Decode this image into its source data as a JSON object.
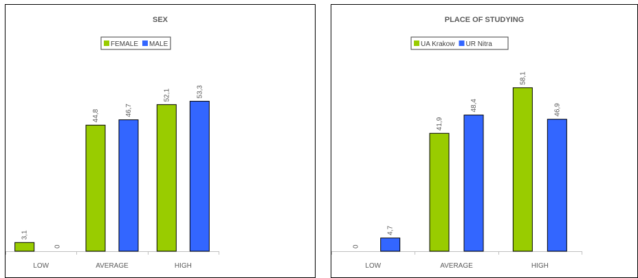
{
  "chart_data": [
    {
      "type": "bar",
      "title": "SEX",
      "categories": [
        "LOW",
        "AVERAGE",
        "HIGH"
      ],
      "series": [
        {
          "name": "FEMALE",
          "color": "#99cc00",
          "values": [
            3.1,
            44.8,
            52.1
          ],
          "labels": [
            "3,1",
            "44,8",
            "52,1"
          ]
        },
        {
          "name": "MALE",
          "color": "#3366ff",
          "values": [
            0,
            46.7,
            53.3
          ],
          "labels": [
            "0",
            "46,7",
            "53,3"
          ]
        }
      ],
      "ylim": [
        0,
        60
      ],
      "legend_position": "top-center",
      "grid": false,
      "xlabel": "",
      "ylabel": ""
    },
    {
      "type": "bar",
      "title": "PLACE OF STUDYING",
      "categories": [
        "LOW",
        "AVERAGE",
        "HIGH"
      ],
      "series": [
        {
          "name": "UA Krakow",
          "color": "#99cc00",
          "values": [
            0,
            41.9,
            58.1
          ],
          "labels": [
            "0",
            "41,9",
            "58,1"
          ]
        },
        {
          "name": "UR Nitra",
          "color": "#3366ff",
          "values": [
            4.7,
            48.4,
            46.9
          ],
          "labels": [
            "4,7",
            "48,4",
            "46,9"
          ]
        }
      ],
      "ylim": [
        0,
        60
      ],
      "legend_position": "top-center",
      "grid": false,
      "xlabel": "",
      "ylabel": ""
    }
  ]
}
